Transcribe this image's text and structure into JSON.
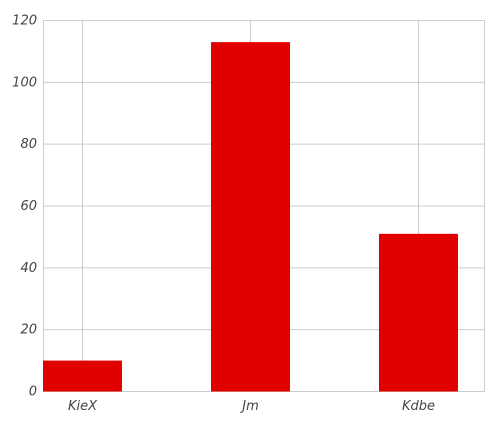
{
  "chart_data": {
    "type": "bar",
    "categories": [
      "KieX",
      "Jm",
      "Kdbe"
    ],
    "values": [
      10,
      113,
      51
    ],
    "title": "",
    "xlabel": "",
    "ylabel": "",
    "ylim": [
      0,
      120
    ],
    "yticks": [
      0,
      20,
      40,
      60,
      80,
      100,
      120
    ],
    "grid": true,
    "bar_color": "#e00000",
    "grid_color": "#cccccc"
  }
}
